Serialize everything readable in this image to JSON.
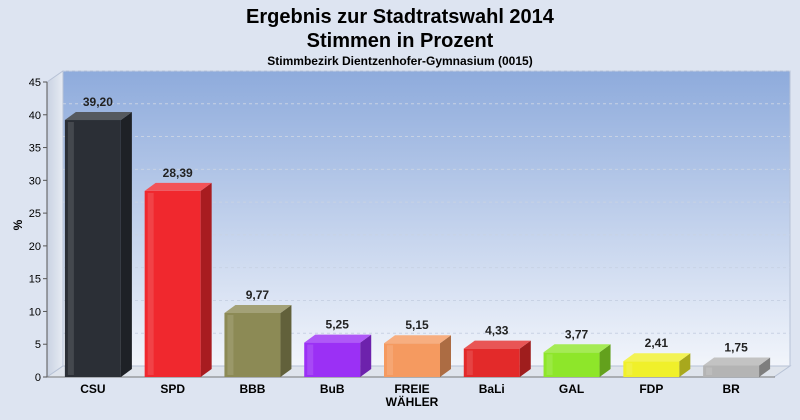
{
  "chart_data": {
    "type": "bar",
    "title_lines": [
      "Ergebnis zur Stadtratswahl 2014",
      "Stimmen in Prozent"
    ],
    "subtitle": "Stimmbezirk Dientzenhofer-Gymnasium (0015)",
    "ylabel": "%",
    "xlabel": "",
    "ylim": [
      0,
      45
    ],
    "yticks": [
      0,
      5,
      10,
      15,
      20,
      25,
      30,
      35,
      40,
      45
    ],
    "grid": true,
    "categories": [
      {
        "label": [
          "CSU"
        ],
        "value": 39.2,
        "value_label": "39,20",
        "color": "#2b2f36"
      },
      {
        "label": [
          "SPD"
        ],
        "value": 28.39,
        "value_label": "28,39",
        "color": "#f0282e"
      },
      {
        "label": [
          "BBB"
        ],
        "value": 9.77,
        "value_label": "9,77",
        "color": "#8c8a55"
      },
      {
        "label": [
          "BuB"
        ],
        "value": 5.25,
        "value_label": "5,25",
        "color": "#9b30f5"
      },
      {
        "label": [
          "FREIE",
          "WÄHLER"
        ],
        "value": 5.15,
        "value_label": "5,15",
        "color": "#f59a60"
      },
      {
        "label": [
          "BaLi"
        ],
        "value": 4.33,
        "value_label": "4,33",
        "color": "#e32a2a"
      },
      {
        "label": [
          "GAL"
        ],
        "value": 3.77,
        "value_label": "3,77",
        "color": "#8ee62a"
      },
      {
        "label": [
          "FDP"
        ],
        "value": 2.41,
        "value_label": "2,41",
        "color": "#f0f02a"
      },
      {
        "label": [
          "BR"
        ],
        "value": 1.75,
        "value_label": "1,75",
        "color": "#b4b4b4"
      }
    ]
  }
}
